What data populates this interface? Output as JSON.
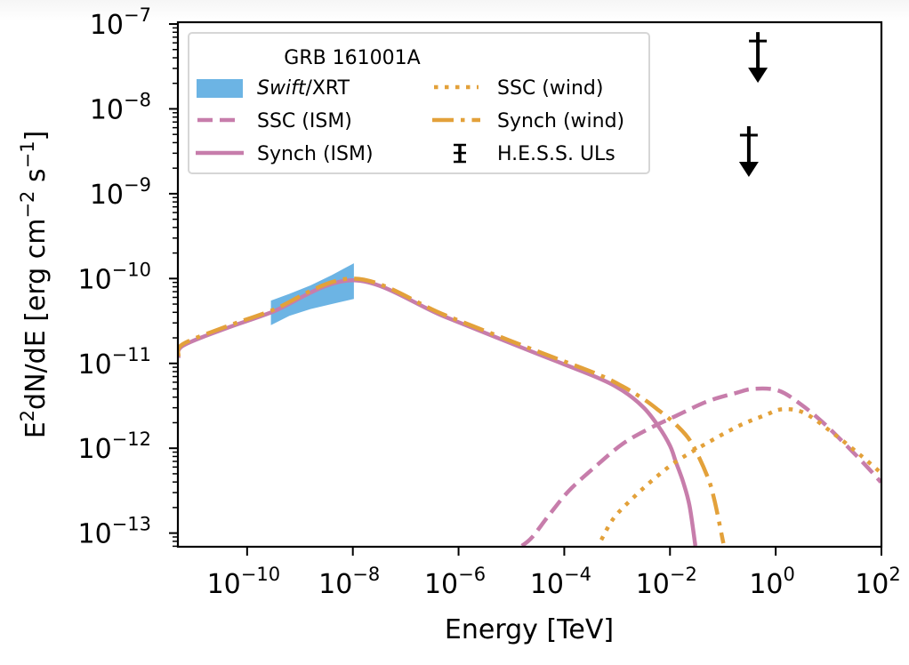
{
  "chart_data": {
    "type": "line",
    "title": "",
    "xlabel": "Energy [TeV]",
    "ylabel": "E²dN/dE [erg cm⁻² s⁻¹]",
    "ylabel_parts": {
      "pre": "E",
      "sup1": "2",
      "mid": "dN/dE [erg cm",
      "sup2": "−2",
      "mid2": " s",
      "sup3": "−1",
      "post": "]"
    },
    "xscale": "log",
    "yscale": "log",
    "xlim": [
      4.9e-12,
      100
    ],
    "ylim": [
      6.9e-14,
      1.05e-07
    ],
    "grid": false,
    "x_ticks": [
      {
        "exp": -10,
        "base": "10",
        "sup": "−10"
      },
      {
        "exp": -8,
        "base": "10",
        "sup": "−8"
      },
      {
        "exp": -6,
        "base": "10",
        "sup": "−6"
      },
      {
        "exp": -4,
        "base": "10",
        "sup": "−4"
      },
      {
        "exp": -2,
        "base": "10",
        "sup": "−2"
      },
      {
        "exp": 0,
        "base": "10",
        "sup": "0"
      },
      {
        "exp": 2,
        "base": "10",
        "sup": "2"
      }
    ],
    "y_ticks": [
      {
        "exp": -13,
        "base": "10",
        "sup": "−13"
      },
      {
        "exp": -12,
        "base": "10",
        "sup": "−12"
      },
      {
        "exp": -11,
        "base": "10",
        "sup": "−11"
      },
      {
        "exp": -10,
        "base": "10",
        "sup": "−10"
      },
      {
        "exp": -9,
        "base": "10",
        "sup": "−9"
      },
      {
        "exp": -8,
        "base": "10",
        "sup": "−8"
      },
      {
        "exp": -7,
        "base": "10",
        "sup": "−7"
      }
    ],
    "legend": {
      "title": "GRB 161001A",
      "placement": "upper-left",
      "columns": 2,
      "entries": [
        {
          "key": "swift",
          "label_italic": "Swift",
          "label": "/XRT"
        },
        {
          "key": "ssc_ism",
          "label": "SSC (ISM)"
        },
        {
          "key": "synch_ism",
          "label": "Synch (ISM)"
        },
        {
          "key": "ssc_wind",
          "label": "SSC (wind)"
        },
        {
          "key": "synch_wind",
          "label": "Synch (wind)"
        },
        {
          "key": "hess",
          "label": "H.E.S.S. ULs"
        }
      ]
    },
    "colors": {
      "swift": "#6cb4e4",
      "ism": "#c77dab",
      "wind": "#e3a13a",
      "ul": "#000000"
    },
    "band": {
      "name": "Swift/XRT",
      "log_energy": [
        -9.55,
        -9.2,
        -8.8,
        -8.4,
        -7.98
      ],
      "log_upper": [
        -10.26,
        -10.18,
        -10.08,
        -9.96,
        -9.82
      ],
      "log_lower": [
        -10.55,
        -10.44,
        -10.36,
        -10.3,
        -10.24
      ]
    },
    "series": [
      {
        "name": "Synch (ISM)",
        "key": "synch_ism",
        "style": "solid",
        "log_energy": [
          -11.3,
          -11.21,
          -10.37,
          -9.55,
          -7.98,
          -6.26,
          -4.58,
          -3.4,
          -2.9,
          -2.5,
          -2.22,
          -2.0,
          -1.89,
          -1.75,
          -1.63,
          -1.52
        ],
        "log_flux": [
          -10.93,
          -10.79,
          -10.58,
          -10.4,
          -10.02,
          -10.45,
          -10.87,
          -11.16,
          -11.32,
          -11.52,
          -11.74,
          -11.97,
          -12.16,
          -12.4,
          -12.68,
          -13.15
        ]
      },
      {
        "name": "Synch (wind)",
        "key": "synch_wind",
        "style": "dashdot",
        "log_energy": [
          -11.3,
          -11.21,
          -10.37,
          -9.55,
          -7.98,
          -6.26,
          -4.58,
          -3.4,
          -2.9,
          -2.5,
          -2.22,
          -1.89,
          -1.6,
          -1.3,
          -1.16,
          -0.99
        ],
        "log_flux": [
          -10.91,
          -10.77,
          -10.56,
          -10.38,
          -10.0,
          -10.43,
          -10.84,
          -11.12,
          -11.27,
          -11.42,
          -11.55,
          -11.72,
          -11.93,
          -12.32,
          -12.61,
          -13.12
        ]
      },
      {
        "name": "SSC (ISM)",
        "key": "ssc_ism",
        "style": "dashed",
        "log_energy": [
          -4.8,
          -4.61,
          -4.29,
          -3.91,
          -3.4,
          -2.9,
          -2.4,
          -1.89,
          -1.3,
          -0.76,
          -0.42,
          0.05,
          0.47,
          0.9,
          1.31,
          1.7,
          1.99
        ],
        "log_flux": [
          -13.15,
          -13.05,
          -12.79,
          -12.5,
          -12.21,
          -11.95,
          -11.77,
          -11.62,
          -11.45,
          -11.35,
          -11.3,
          -11.32,
          -11.48,
          -11.7,
          -11.95,
          -12.2,
          -12.4
        ]
      },
      {
        "name": "SSC (wind)",
        "key": "ssc_wind",
        "style": "dotted",
        "log_energy": [
          -3.3,
          -3.06,
          -2.69,
          -2.3,
          -1.89,
          -1.33,
          -0.71,
          -0.2,
          0.13,
          0.56,
          1.14,
          1.6,
          1.99
        ],
        "log_flux": [
          -13.08,
          -12.82,
          -12.58,
          -12.36,
          -12.16,
          -11.95,
          -11.74,
          -11.61,
          -11.54,
          -11.59,
          -11.85,
          -12.08,
          -12.29
        ]
      }
    ],
    "upper_limits": [
      {
        "energy_TeV": 0.46,
        "flux": 6.3e-08
      },
      {
        "energy_TeV": 0.31,
        "flux": 4.9e-09
      }
    ]
  }
}
